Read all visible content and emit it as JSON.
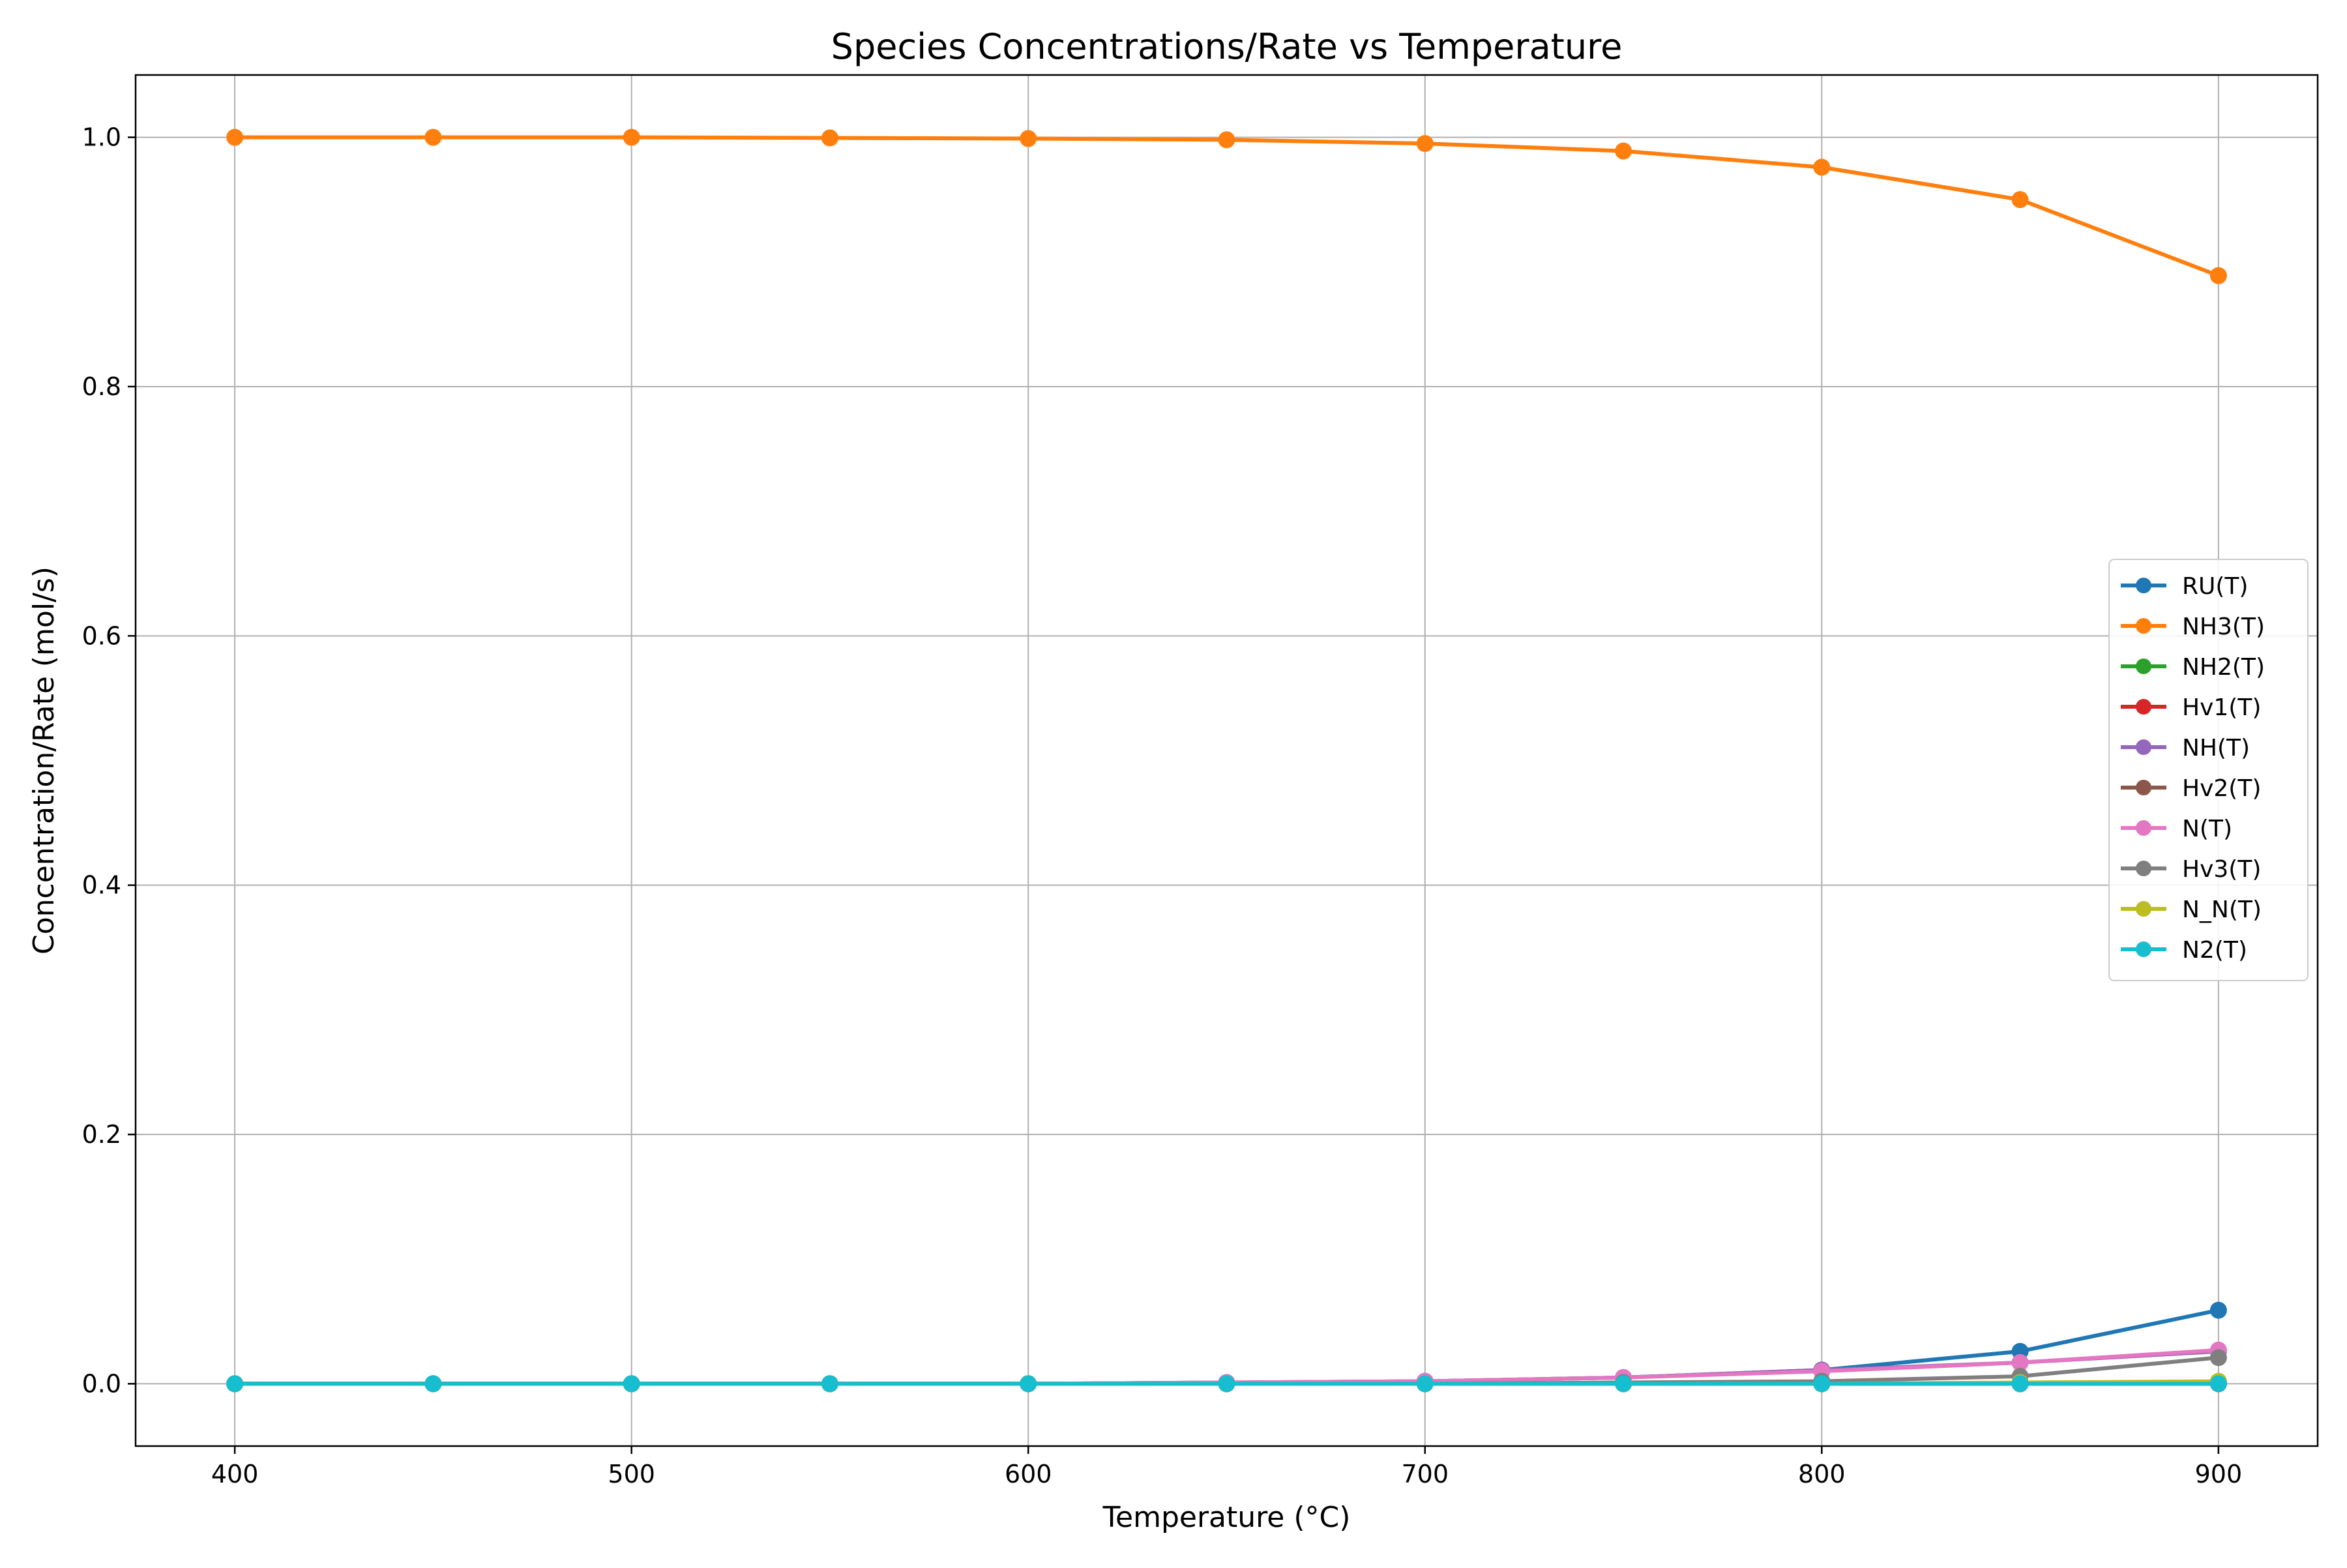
{
  "chart_data": {
    "type": "line",
    "title": "Species Concentrations/Rate vs Temperature",
    "xlabel": "Temperature (°C)",
    "ylabel": "Concentration/Rate (mol/s)",
    "xlim": [
      375,
      925
    ],
    "ylim": [
      -0.05,
      1.05
    ],
    "xticks": [
      400,
      500,
      600,
      700,
      800,
      900
    ],
    "xtick_labels": [
      "400",
      "500",
      "600",
      "700",
      "800",
      "900"
    ],
    "yticks": [
      0.0,
      0.2,
      0.4,
      0.6,
      0.8,
      1.0
    ],
    "ytick_labels": [
      "0.0",
      "0.2",
      "0.4",
      "0.6",
      "0.8",
      "1.0"
    ],
    "grid": true,
    "legend_position": "center-right",
    "x": [
      400,
      450,
      500,
      550,
      600,
      650,
      700,
      750,
      800,
      850,
      900
    ],
    "series": [
      {
        "name": "RU(T)",
        "color": "#1f77b4",
        "values": [
          0.0,
          0.0,
          0.0,
          0.0,
          0.0,
          0.001,
          0.002,
          0.005,
          0.011,
          0.026,
          0.059
        ]
      },
      {
        "name": "NH3(T)",
        "color": "#ff7f0e",
        "values": [
          1.0,
          1.0,
          1.0,
          0.9995,
          0.999,
          0.998,
          0.995,
          0.989,
          0.976,
          0.95,
          0.889
        ]
      },
      {
        "name": "NH2(T)",
        "color": "#2ca02c",
        "values": [
          0.0,
          0.0,
          0.0,
          0.0,
          0.0,
          0.0,
          0.0,
          0.0,
          0.0,
          0.0,
          0.001
        ]
      },
      {
        "name": "Hv1(T)",
        "color": "#d62728",
        "values": [
          0.0,
          0.0,
          0.0,
          0.0,
          0.0,
          0.0,
          0.0,
          0.0,
          0.0,
          0.0,
          0.0
        ]
      },
      {
        "name": "NH(T)",
        "color": "#9467bd",
        "values": [
          0.0,
          0.0,
          0.0,
          0.0,
          0.0,
          0.001,
          0.002,
          0.005,
          0.011,
          0.017,
          0.026
        ]
      },
      {
        "name": "Hv2(T)",
        "color": "#8c564b",
        "values": [
          0.0,
          0.0,
          0.0,
          0.0,
          0.0,
          0.0,
          0.0,
          0.0,
          0.0,
          0.0,
          0.0
        ]
      },
      {
        "name": "N(T)",
        "color": "#e377c2",
        "values": [
          0.0,
          0.0,
          0.0,
          0.0,
          0.0,
          0.001,
          0.002,
          0.005,
          0.01,
          0.017,
          0.027
        ]
      },
      {
        "name": "Hv3(T)",
        "color": "#7f7f7f",
        "values": [
          0.0,
          0.0,
          0.0,
          0.0,
          0.0,
          0.0,
          0.0,
          0.001,
          0.002,
          0.006,
          0.021
        ]
      },
      {
        "name": "N_N(T)",
        "color": "#bcbd22",
        "values": [
          0.0,
          0.0,
          0.0,
          0.0,
          0.0,
          0.0,
          0.0,
          0.0,
          0.0,
          0.001,
          0.002
        ]
      },
      {
        "name": "N2(T)",
        "color": "#17becf",
        "values": [
          0.0,
          0.0,
          0.0,
          0.0,
          0.0,
          0.0,
          0.0,
          0.0,
          0.0,
          0.0,
          0.0
        ]
      }
    ]
  }
}
